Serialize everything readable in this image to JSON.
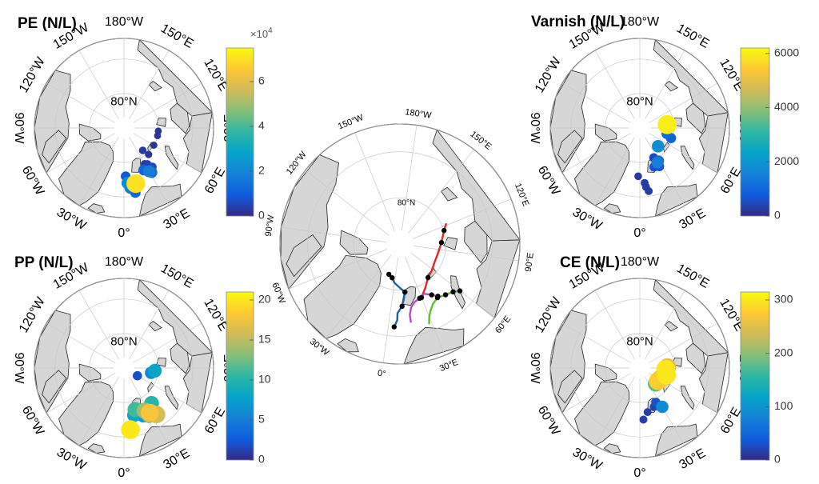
{
  "map_labels": {
    "lon_180": "180°W",
    "lon_150w": "150°W",
    "lon_120w": "120°W",
    "lon_90w": "90°W",
    "lon_60w": "60°W",
    "lon_30w": "30°W",
    "lon_0": "0°",
    "lon_30e": "30°E",
    "lon_60e": "60°E",
    "lon_90e": "90°E",
    "lon_120e": "120°E",
    "lon_150e": "150°E",
    "lat_80n": "80°N"
  },
  "colormap": [
    "#352a87",
    "#0f5cdd",
    "#1481d6",
    "#06a4ca",
    "#2eb7a4",
    "#87bf77",
    "#d1bb59",
    "#fec832",
    "#f9fb0e"
  ],
  "route_colors": {
    "blue": "#1f5fa8",
    "red": "#e0262a",
    "magenta": "#b44cc8",
    "green": "#5fbf2a",
    "station": "#000000"
  },
  "panels": [
    {
      "id": "pe",
      "title": "PE (N/L)",
      "colorbar": {
        "min": 0,
        "max": 75000,
        "ticks": [
          "0",
          "2",
          "4",
          "6"
        ],
        "tick_values": [
          0,
          20000,
          40000,
          60000
        ],
        "exponent_base": "×10",
        "exponent_power": "4"
      },
      "points": [
        {
          "lon": 12,
          "lat": 73.5,
          "value": 70000
        },
        {
          "lon": 30,
          "lat": 75.5,
          "value": 18000
        },
        {
          "lon": 25,
          "lat": 76.5,
          "value": 12000
        },
        {
          "lon": 33,
          "lat": 77.5,
          "value": 4000
        },
        {
          "lon": 30,
          "lat": 78.0,
          "value": 3000
        },
        {
          "lon": 36,
          "lat": 76.0,
          "value": 6000
        },
        {
          "lon": 43,
          "lat": 79.5,
          "value": 2500
        },
        {
          "lon": 60,
          "lat": 80.0,
          "value": 2000
        },
        {
          "lon": 77,
          "lat": 80.0,
          "value": 1800
        },
        {
          "lon": 85,
          "lat": 80.0,
          "value": 1800
        },
        {
          "lon": 2,
          "lat": 76.0,
          "value": 9000
        },
        {
          "lon": 4,
          "lat": 74.0,
          "value": 22000
        },
        {
          "lon": 6,
          "lat": 72.5,
          "value": 17000
        },
        {
          "lon": 10,
          "lat": 71.0,
          "value": 12000
        },
        {
          "lon": 40,
          "lat": 81.5,
          "value": 3000
        },
        {
          "lon": 32,
          "lat": 74.8,
          "value": 15000
        }
      ]
    },
    {
      "id": "varnish",
      "title": "Varnish (N/L)",
      "colorbar": {
        "min": 0,
        "max": 6200,
        "ticks": [
          "0",
          "2000",
          "4000",
          "6000"
        ],
        "tick_values": [
          0,
          2000,
          4000,
          6000
        ]
      },
      "points": [
        {
          "lon": 97,
          "lat": 82.0,
          "value": 6000
        },
        {
          "lon": 93,
          "lat": 82.5,
          "value": 1200
        },
        {
          "lon": 78,
          "lat": 82.0,
          "value": 1000
        },
        {
          "lon": 72,
          "lat": 80.5,
          "value": 900
        },
        {
          "lon": 45,
          "lat": 82.5,
          "value": 1800
        },
        {
          "lon": 30,
          "lat": 79.0,
          "value": 1000
        },
        {
          "lon": 27,
          "lat": 77.5,
          "value": 700
        },
        {
          "lon": 20,
          "lat": 78.0,
          "value": 600
        },
        {
          "lon": 27,
          "lat": 78.8,
          "value": 1500
        },
        {
          "lon": 25,
          "lat": 80.5,
          "value": 500
        },
        {
          "lon": 5,
          "lat": 74.0,
          "value": 300
        },
        {
          "lon": 6,
          "lat": 72.8,
          "value": 300
        },
        {
          "lon": 8,
          "lat": 71.5,
          "value": 300
        },
        {
          "lon": -2,
          "lat": 76.0,
          "value": 250
        }
      ]
    },
    {
      "id": "pp",
      "title": "PP (N/L)",
      "colorbar": {
        "min": 0,
        "max": 21,
        "ticks": [
          "0",
          "5",
          "10",
          "15",
          "20"
        ],
        "tick_values": [
          0,
          5,
          10,
          15,
          20
        ]
      },
      "points": [
        {
          "lon": 6,
          "lat": 72.0,
          "value": 20
        },
        {
          "lon": 6,
          "lat": 72.0,
          "value": 8
        },
        {
          "lon": 30,
          "lat": 75.0,
          "value": 18
        },
        {
          "lon": 28,
          "lat": 74.5,
          "value": 12
        },
        {
          "lon": 34,
          "lat": 76.5,
          "value": 9
        },
        {
          "lon": 22,
          "lat": 75.0,
          "value": 7
        },
        {
          "lon": 12,
          "lat": 76.0,
          "value": 8
        },
        {
          "lon": 15,
          "lat": 77.5,
          "value": 11
        },
        {
          "lon": 26,
          "lat": 76.2,
          "value": 14
        },
        {
          "lon": 80,
          "lat": 82.0,
          "value": 6
        },
        {
          "lon": 85,
          "lat": 81.0,
          "value": 8
        },
        {
          "lon": 60,
          "lat": 85.5,
          "value": 2
        },
        {
          "lon": 35,
          "lat": 73.5,
          "value": 16
        },
        {
          "lon": 38,
          "lat": 77.0,
          "value": 10
        }
      ]
    },
    {
      "id": "ce",
      "title": "CE (N/L)",
      "colorbar": {
        "min": 0,
        "max": 315,
        "ticks": [
          "0",
          "100",
          "200",
          "300"
        ],
        "tick_values": [
          0,
          100,
          200,
          300
        ]
      },
      "points": [
        {
          "lon": 92,
          "lat": 82.0,
          "value": 250
        },
        {
          "lon": 87,
          "lat": 82.5,
          "value": 300
        },
        {
          "lon": 75,
          "lat": 82.0,
          "value": 300
        },
        {
          "lon": 66,
          "lat": 83.0,
          "value": 280
        },
        {
          "lon": 55,
          "lat": 83.5,
          "value": 280
        },
        {
          "lon": 50,
          "lat": 84.0,
          "value": 120
        },
        {
          "lon": 45,
          "lat": 83.5,
          "value": 180
        },
        {
          "lon": 30,
          "lat": 77.0,
          "value": 90
        },
        {
          "lon": 25,
          "lat": 79.0,
          "value": 30
        },
        {
          "lon": 20,
          "lat": 78.0,
          "value": 20
        },
        {
          "lon": 10,
          "lat": 77.0,
          "value": 15
        },
        {
          "lon": 4,
          "lat": 75.0,
          "value": 15
        }
      ]
    }
  ],
  "routes": [
    {
      "name": "blue",
      "points": [
        [
          4,
          72.0
        ],
        [
          6,
          73.5
        ],
        [
          6,
          75.0
        ],
        [
          10,
          76.5
        ],
        [
          12,
          78.0
        ],
        [
          14,
          79.5
        ],
        [
          8,
          80.5
        ],
        [
          0,
          81.5
        ],
        [
          -5,
          82.5
        ],
        [
          -12,
          83.0
        ]
      ]
    },
    {
      "name": "red",
      "points": [
        [
          30,
          77.5
        ],
        [
          38,
          79.0
        ],
        [
          48,
          80.5
        ],
        [
          58,
          81.0
        ],
        [
          70,
          81.5
        ],
        [
          85,
          81.5
        ],
        [
          100,
          81.0
        ],
        [
          115,
          80.0
        ],
        [
          122,
          79.0
        ]
      ]
    },
    {
      "name": "magenta",
      "points": [
        [
          16,
          72.8
        ],
        [
          16,
          74.5
        ],
        [
          18,
          76.0
        ],
        [
          22,
          77.0
        ],
        [
          28,
          77.5
        ],
        [
          34,
          78.0
        ],
        [
          40,
          77.0
        ],
        [
          44,
          76.0
        ]
      ]
    },
    {
      "name": "green",
      "points": [
        [
          28,
          71.5
        ],
        [
          30,
          73.0
        ],
        [
          33,
          74.2
        ],
        [
          37,
          75.2
        ],
        [
          43,
          75.8
        ],
        [
          50,
          75.2
        ],
        [
          56,
          74.5
        ],
        [
          60,
          73.5
        ]
      ]
    }
  ],
  "stations": [
    [
      4,
      72.0
    ],
    [
      10,
      76.5
    ],
    [
      14,
      79.5
    ],
    [
      -5,
      82.5
    ],
    [
      -12,
      83.0
    ],
    [
      30,
      77.5
    ],
    [
      48,
      80.5
    ],
    [
      100,
      81.0
    ],
    [
      115,
      80.0
    ],
    [
      28,
      77.5
    ],
    [
      40,
      77.0
    ],
    [
      44,
      76.0
    ],
    [
      43,
      75.8
    ],
    [
      50,
      75.2
    ],
    [
      56,
      74.5
    ],
    [
      60,
      73.5
    ]
  ]
}
